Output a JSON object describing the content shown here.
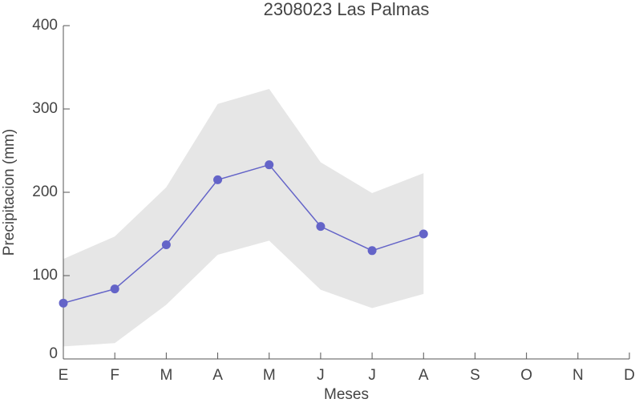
{
  "chart_data": {
    "type": "line",
    "title": "2308023 Las Palmas",
    "x_label": "Meses",
    "y_label": "Precipitacion (mm)",
    "categories": [
      "E",
      "F",
      "M",
      "A",
      "M",
      "J",
      "J",
      "A",
      "S",
      "O",
      "N",
      "D"
    ],
    "series": [
      {
        "color": "#6464c8",
        "values": [
          67,
          84,
          137,
          215,
          233,
          159,
          130,
          150,
          null,
          null,
          null,
          null
        ]
      }
    ],
    "band": {
      "color": "#e6e6e6",
      "upper": [
        120,
        147,
        206,
        306,
        324,
        236,
        199,
        223,
        null,
        null,
        null,
        null
      ],
      "lower": [
        15,
        19,
        65,
        125,
        142,
        83,
        61,
        78,
        null,
        null,
        null,
        null
      ]
    },
    "ylim": [
      0,
      400
    ],
    "yticks": [
      0,
      100,
      200,
      300,
      400
    ]
  }
}
